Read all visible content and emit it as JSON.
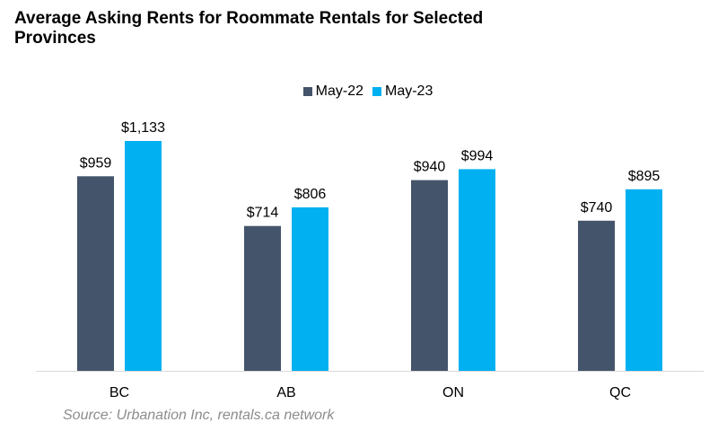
{
  "chart_data": {
    "type": "bar",
    "title": "Average Asking Rents for Roommate Rentals for Selected Provinces",
    "categories": [
      "BC",
      "AB",
      "ON",
      "QC"
    ],
    "series": [
      {
        "name": "May-22",
        "values": [
          959,
          714,
          940,
          740
        ],
        "labels": [
          "$959",
          "$714",
          "$940",
          "$740"
        ],
        "color": "#44546a"
      },
      {
        "name": "May-23",
        "values": [
          1133,
          806,
          994,
          895
        ],
        "labels": [
          "$1,133",
          "$806",
          "$994",
          "$895"
        ],
        "color": "#00b0f0"
      }
    ],
    "ylim": [
      0,
      1150
    ],
    "grid": false,
    "legend_position": "top-center",
    "source": "Source: Urbanation Inc, rentals.ca network"
  }
}
